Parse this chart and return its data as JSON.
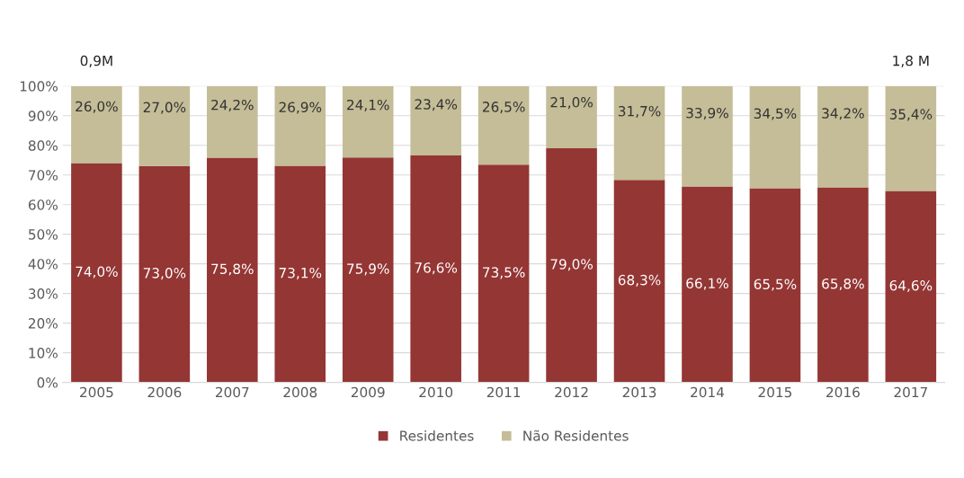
{
  "chart_data": {
    "type": "bar",
    "stacked": true,
    "categories": [
      "2005",
      "2006",
      "2007",
      "2008",
      "2009",
      "2010",
      "2011",
      "2012",
      "2013",
      "2014",
      "2015",
      "2016",
      "2017"
    ],
    "series": [
      {
        "name": "Residentes",
        "color": "#943634",
        "values": [
          74.0,
          73.0,
          75.8,
          73.1,
          75.9,
          76.6,
          73.5,
          79.0,
          68.3,
          66.1,
          65.5,
          65.8,
          64.6
        ],
        "value_labels": [
          "74,0%",
          "73,0%",
          "75,8%",
          "73,1%",
          "75,9%",
          "76,6%",
          "73,5%",
          "79,0%",
          "68,3%",
          "66,1%",
          "65,5%",
          "65,8%",
          "64,6%"
        ]
      },
      {
        "name": "Não Residentes",
        "color": "#c4bd97",
        "values": [
          26.0,
          27.0,
          24.2,
          26.9,
          24.1,
          23.4,
          26.5,
          21.0,
          31.7,
          33.9,
          34.5,
          34.2,
          35.4
        ],
        "value_labels": [
          "26,0%",
          "27,0%",
          "24,2%",
          "26,9%",
          "24,1%",
          "23,4%",
          "26,5%",
          "21,0%",
          "31,7%",
          "33,9%",
          "34,5%",
          "34,2%",
          "35,4%"
        ]
      }
    ],
    "ylim": [
      0,
      100
    ],
    "yticks": [
      {
        "value": 0,
        "label": "0%"
      },
      {
        "value": 10,
        "label": "10%"
      },
      {
        "value": 20,
        "label": "20%"
      },
      {
        "value": 30,
        "label": "30%"
      },
      {
        "value": 40,
        "label": "40%"
      },
      {
        "value": 50,
        "label": "50%"
      },
      {
        "value": 60,
        "label": "60%"
      },
      {
        "value": 70,
        "label": "70%"
      },
      {
        "value": 80,
        "label": "80%"
      },
      {
        "value": 90,
        "label": "90%"
      },
      {
        "value": 100,
        "label": "100%"
      }
    ],
    "grid": "y",
    "legend": "bottom",
    "annotations": [
      {
        "text": "0,9M",
        "x": "2005",
        "y": 100
      },
      {
        "text": "1,8 M",
        "x": "2017",
        "y": 100
      }
    ]
  }
}
